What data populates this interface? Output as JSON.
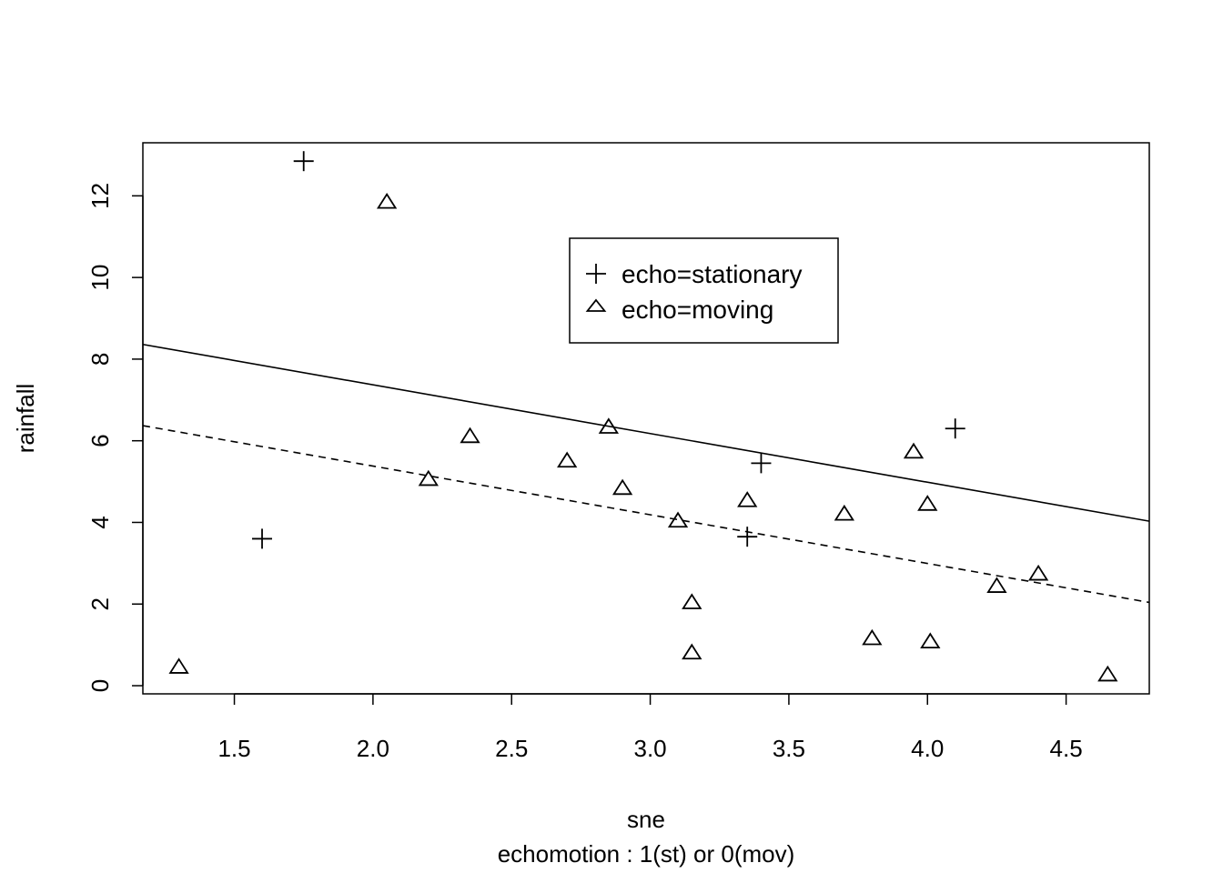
{
  "chart_data": {
    "type": "scatter",
    "title": "",
    "xlabel": "sne",
    "sublabel": "echomotion : 1(st) or 0(mov)",
    "ylabel": "rainfall",
    "xlim": [
      1.17,
      4.8
    ],
    "ylim": [
      -0.2,
      13.3
    ],
    "x_ticks": [
      1.5,
      2.0,
      2.5,
      3.0,
      3.5,
      4.0,
      4.5
    ],
    "x_tick_labels": [
      "1.5",
      "2.0",
      "2.5",
      "3.0",
      "3.5",
      "4.0",
      "4.5"
    ],
    "y_ticks": [
      0,
      2,
      4,
      6,
      8,
      10,
      12
    ],
    "y_tick_labels": [
      "0",
      "2",
      "4",
      "6",
      "8",
      "10",
      "12"
    ],
    "grid": false,
    "legend_position": "upper-center",
    "series": [
      {
        "name": "echo=stationary",
        "marker": "plus",
        "points": [
          {
            "x": 1.75,
            "y": 12.85
          },
          {
            "x": 1.6,
            "y": 3.6
          },
          {
            "x": 3.4,
            "y": 5.45
          },
          {
            "x": 3.35,
            "y": 3.65
          },
          {
            "x": 4.1,
            "y": 6.3
          }
        ]
      },
      {
        "name": "echo=moving",
        "marker": "triangle",
        "points": [
          {
            "x": 1.3,
            "y": 0.47
          },
          {
            "x": 2.05,
            "y": 11.86
          },
          {
            "x": 2.2,
            "y": 5.07
          },
          {
            "x": 2.35,
            "y": 6.12
          },
          {
            "x": 2.7,
            "y": 5.52
          },
          {
            "x": 2.85,
            "y": 6.35
          },
          {
            "x": 2.9,
            "y": 4.85
          },
          {
            "x": 3.1,
            "y": 4.05
          },
          {
            "x": 3.15,
            "y": 2.05
          },
          {
            "x": 3.15,
            "y": 0.82
          },
          {
            "x": 3.35,
            "y": 4.55
          },
          {
            "x": 3.7,
            "y": 4.22
          },
          {
            "x": 3.8,
            "y": 1.17
          },
          {
            "x": 3.95,
            "y": 5.74
          },
          {
            "x": 4.0,
            "y": 4.46
          },
          {
            "x": 4.01,
            "y": 1.09
          },
          {
            "x": 4.25,
            "y": 2.45
          },
          {
            "x": 4.4,
            "y": 2.75
          },
          {
            "x": 4.65,
            "y": 0.28
          }
        ]
      }
    ],
    "fit_lines": [
      {
        "series": "echo=stationary",
        "style": "solid",
        "x": [
          1.17,
          4.8
        ],
        "y": [
          8.36,
          4.03
        ]
      },
      {
        "series": "echo=moving",
        "style": "dashed",
        "x": [
          1.17,
          4.8
        ],
        "y": [
          6.37,
          2.04
        ]
      }
    ]
  }
}
